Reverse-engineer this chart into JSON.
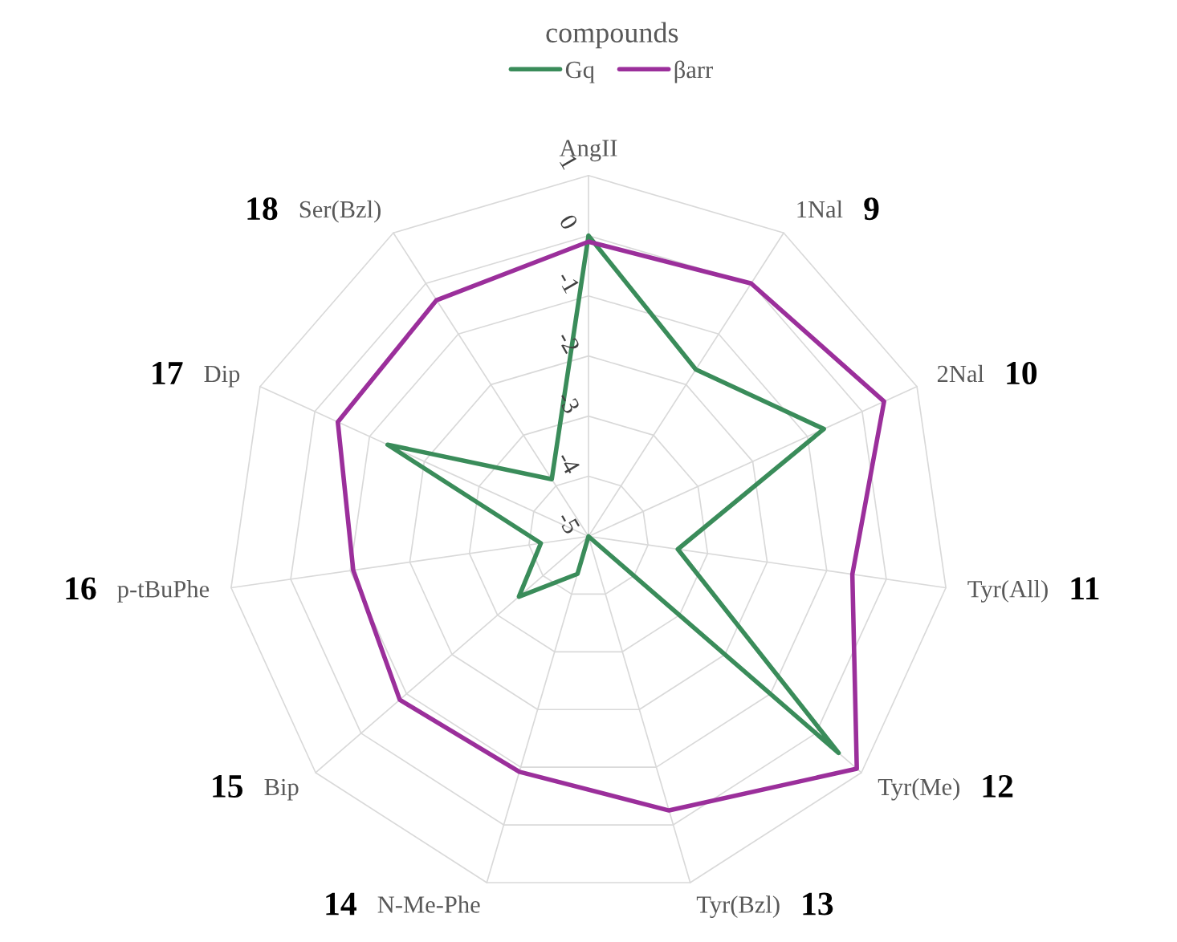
{
  "chart_data": {
    "type": "radar",
    "legend_title": "compounds",
    "categories": [
      "AngII",
      "1Nal",
      "2Nal",
      "Tyr(All)",
      "Tyr(Me)",
      "Tyr(Bzl)",
      "N-Me-Phe",
      "Bip",
      "p-tBuPhe",
      "Dip",
      "Ser(Bzl)"
    ],
    "series": [
      {
        "name": "Gq",
        "color": "#3a8c5a",
        "values": [
          0,
          -1.7,
          -0.7,
          -3.5,
          0.5,
          -5,
          -4.35,
          -3.47,
          -4.2,
          -1.33,
          -3.87
        ]
      },
      {
        "name": "βarr",
        "color": "#9b2f9b",
        "values": [
          -0.1,
          0.0,
          0.4,
          -0.57,
          0.9,
          -0.25,
          -0.92,
          -0.85,
          -1.05,
          -0.42,
          -0.33
        ]
      }
    ],
    "ylim": [
      -5,
      1
    ],
    "yticks": [
      -5,
      -4,
      -3,
      -2,
      -1,
      0,
      1
    ],
    "grid": true,
    "legend": "top",
    "marker": "none",
    "line_style": "solid",
    "annotations": [
      null,
      "9",
      "10",
      "11",
      "12",
      "13",
      "14",
      "15",
      "16",
      "17",
      "18"
    ]
  }
}
